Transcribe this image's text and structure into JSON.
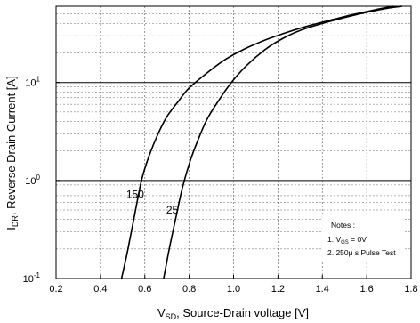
{
  "chart_data": {
    "type": "line",
    "x_scale": "linear",
    "y_scale": "log",
    "xlim": [
      0.2,
      1.8
    ],
    "ylim": [
      0.1,
      60
    ],
    "x_ticks": [
      0.2,
      0.4,
      0.6,
      0.8,
      1.0,
      1.2,
      1.4,
      1.6,
      1.8
    ],
    "x_tick_labels": [
      "0.2",
      "0.4",
      "0.6",
      "0.8",
      "1.0",
      "1.2",
      "1.4",
      "1.6",
      "1.8"
    ],
    "y_ticks": [
      0.1,
      1,
      10
    ],
    "y_tick_labels": [
      {
        "base": "10",
        "exp": "-1"
      },
      {
        "base": "10",
        "exp": "0"
      },
      {
        "base": "10",
        "exp": "1"
      }
    ],
    "xlabel": {
      "main": "V",
      "sub": "SD",
      "rest": ", Source-Drain voltage [V]"
    },
    "ylabel": {
      "main": "I",
      "sub": "DR",
      "rest": ", Reverse Drain Current [A]"
    },
    "grid": true,
    "series": [
      {
        "name": "150",
        "x": [
          0.495,
          0.52,
          0.55,
          0.585,
          0.62,
          0.66,
          0.7,
          0.75,
          0.8,
          0.88,
          0.96,
          1.05,
          1.15,
          1.25,
          1.35,
          1.45,
          1.55,
          1.65,
          1.72
        ],
        "y": [
          0.1,
          0.18,
          0.4,
          1.0,
          1.8,
          3.0,
          4.5,
          6.4,
          8.8,
          12.5,
          17.0,
          22.0,
          27.5,
          33.0,
          38.5,
          44.0,
          50.0,
          56.0,
          60.0
        ]
      },
      {
        "name": "25",
        "x": [
          0.685,
          0.71,
          0.74,
          0.77,
          0.805,
          0.84,
          0.88,
          0.93,
          0.99,
          1.06,
          1.14,
          1.22,
          1.3,
          1.4,
          1.5,
          1.6,
          1.7,
          1.76
        ],
        "y": [
          0.1,
          0.2,
          0.42,
          0.85,
          1.6,
          2.6,
          4.2,
          6.4,
          10.0,
          15.0,
          21.5,
          28.0,
          34.0,
          40.0,
          46.0,
          52.0,
          57.5,
          60.0
        ]
      }
    ],
    "notes": {
      "title": "Notes :",
      "line1": {
        "prefix": "1. V",
        "sub": "GS",
        "suffix": " = 0V"
      },
      "line2": "2. 250μ s Pulse Test"
    }
  }
}
